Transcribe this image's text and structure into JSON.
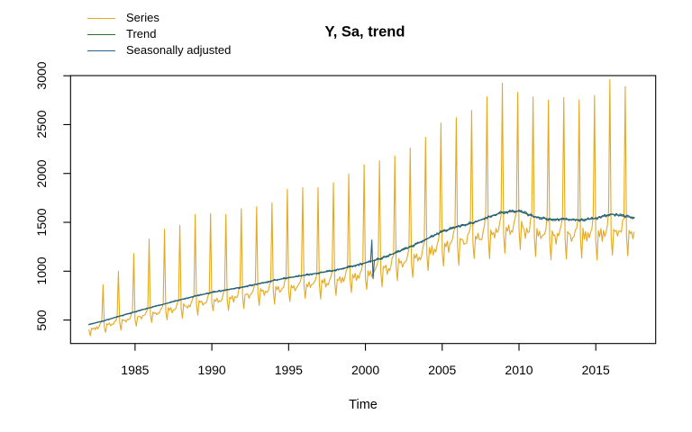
{
  "legend": {
    "items": [
      {
        "label": "Series",
        "color": "#e5a91f"
      },
      {
        "label": "Trend",
        "color": "#2d6e35"
      },
      {
        "label": "Seasonally adjusted",
        "color": "#2a5f8f"
      }
    ]
  },
  "chart_data": {
    "type": "line",
    "title": "Y, Sa, trend",
    "xlabel": "Time",
    "ylabel": "",
    "grid": false,
    "legend_position": "top-left",
    "frequency": "monthly",
    "start": 1982.0,
    "end": 2017.5,
    "xlim": [
      1980.8,
      2018.9
    ],
    "ylim": [
      259.6,
      3001.6
    ],
    "x_ticks": [
      1985,
      1990,
      1995,
      2000,
      2005,
      2010,
      2015
    ],
    "x_tick_labels": [
      "1985",
      "1990",
      "1995",
      "2000",
      "2005",
      "2010",
      "2015"
    ],
    "y_ticks": [
      500,
      1000,
      1500,
      2000,
      2500,
      3000
    ],
    "y_tick_labels": [
      "500",
      "1000",
      "1500",
      "2000",
      "2500",
      "3000"
    ],
    "series": [
      {
        "name": "Series",
        "color": "#e5a91f",
        "kind": "seasonal"
      },
      {
        "name": "Trend",
        "color": "#2d6e35",
        "kind": "trend"
      },
      {
        "name": "Seasonally adjusted",
        "color": "#2a5f8f",
        "kind": "sa"
      }
    ],
    "trend_points": [
      [
        1982.0,
        455
      ],
      [
        1983,
        494
      ],
      [
        1984,
        540
      ],
      [
        1985,
        585
      ],
      [
        1986,
        628
      ],
      [
        1987,
        668
      ],
      [
        1988,
        710
      ],
      [
        1989,
        748
      ],
      [
        1990,
        782
      ],
      [
        1991,
        810
      ],
      [
        1992,
        838
      ],
      [
        1993,
        870
      ],
      [
        1994,
        905
      ],
      [
        1995,
        932
      ],
      [
        1996,
        958
      ],
      [
        1997,
        983
      ],
      [
        1998,
        1010
      ],
      [
        1999,
        1045
      ],
      [
        2000,
        1085
      ],
      [
        2001,
        1130
      ],
      [
        2002,
        1190
      ],
      [
        2003,
        1255
      ],
      [
        2004,
        1330
      ],
      [
        2005,
        1405
      ],
      [
        2006,
        1455
      ],
      [
        2007,
        1495
      ],
      [
        2008,
        1555
      ],
      [
        2009,
        1605
      ],
      [
        2010,
        1615
      ],
      [
        2011,
        1558
      ],
      [
        2012,
        1532
      ],
      [
        2013,
        1530
      ],
      [
        2014,
        1525
      ],
      [
        2015,
        1540
      ],
      [
        2016,
        1585
      ],
      [
        2016.5,
        1572
      ],
      [
        2017,
        1558
      ],
      [
        2017.5,
        1550
      ]
    ],
    "december_peaks_start_year": 1982,
    "december_peaks": [
      860,
      1000,
      1180,
      1330,
      1430,
      1470,
      1580,
      1590,
      1580,
      1640,
      1660,
      1700,
      1840,
      1855,
      1855,
      1905,
      1995,
      2090,
      2130,
      2180,
      2260,
      2370,
      2515,
      2570,
      2645,
      2783,
      2925,
      2829,
      2783,
      2752,
      2777,
      2752,
      2798,
      2960,
      2890
    ],
    "seasonal_profile": [
      0.87,
      0.74,
      0.92,
      0.89,
      0.91,
      0.85,
      0.89,
      0.88,
      0.91,
      0.95,
      1.0,
      1.9
    ],
    "anomalies": [
      {
        "year": 2000.4167,
        "delta": 215
      },
      {
        "year": 2000.5,
        "delta": -185
      }
    ],
    "noise": {
      "seed": 1234567,
      "series": 0.05,
      "sa": 0.022
    }
  }
}
